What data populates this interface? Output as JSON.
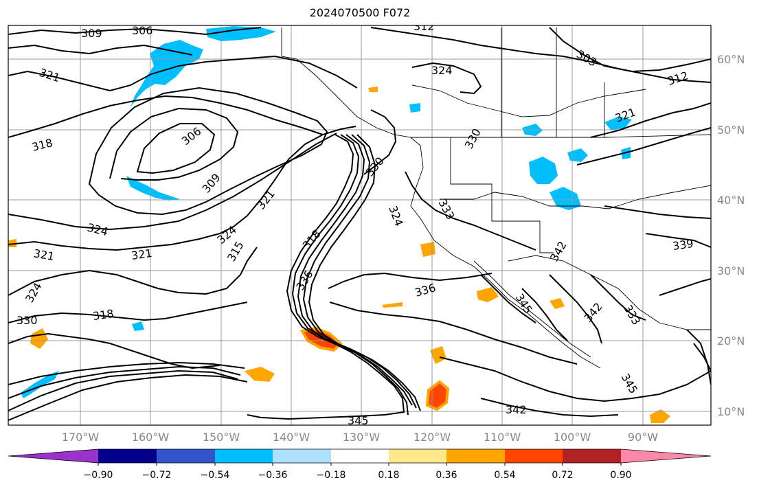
{
  "title": "2024070500 F072",
  "map": {
    "lat_labels": [
      "60°N",
      "50°N",
      "40°N",
      "30°N",
      "20°N",
      "10°N"
    ],
    "lon_labels": [
      "170°W",
      "160°W",
      "150°W",
      "140°W",
      "130°W",
      "120°W",
      "110°W",
      "100°W",
      "90°W"
    ],
    "contour_labels": [
      "309",
      "306",
      "312",
      "303",
      "324",
      "312",
      "321",
      "321",
      "318",
      "306",
      "309",
      "321",
      "330",
      "330",
      "333",
      "324",
      "324",
      "324",
      "321",
      "321",
      "315",
      "318",
      "336",
      "336",
      "324",
      "330",
      "318",
      "345",
      "342",
      "339",
      "342",
      "333",
      "345",
      "342",
      "345"
    ]
  },
  "colorbar": {
    "tick_labels": [
      "−0.90",
      "−0.72",
      "−0.54",
      "−0.36",
      "−0.18",
      "0.18",
      "0.36",
      "0.54",
      "0.72",
      "0.90"
    ],
    "colors": [
      "#9933cc",
      "#00008b",
      "#3355cc",
      "#00bfff",
      "#aee0ff",
      "#ffffff",
      "#ffe88a",
      "#ffa500",
      "#ff4500",
      "#b22222",
      "#ff88aa"
    ]
  }
}
